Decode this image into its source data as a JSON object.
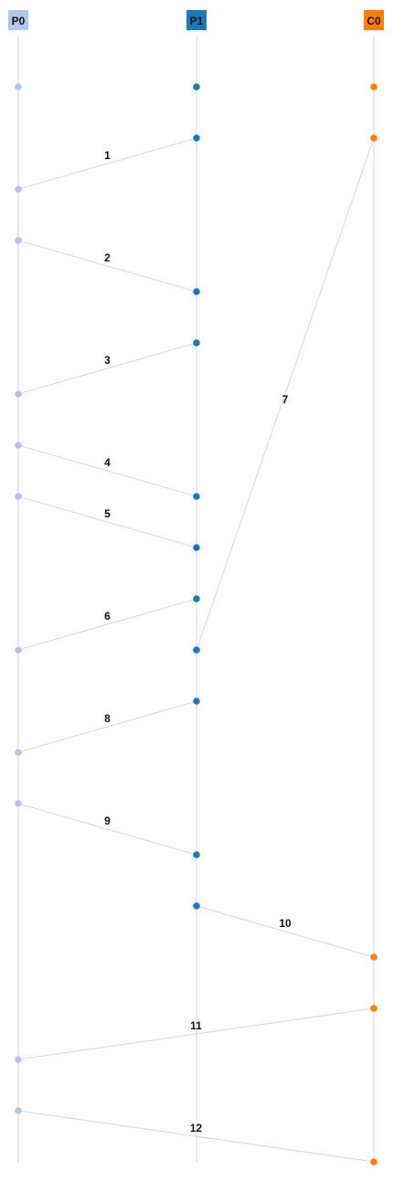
{
  "participants": [
    {
      "id": "P0",
      "label": "P0",
      "color": "#aec7e8"
    },
    {
      "id": "P1",
      "label": "P1",
      "color": "#1f77b4"
    },
    {
      "id": "C0",
      "label": "C0",
      "color": "#ff7f0e"
    }
  ],
  "messages": [
    {
      "label": "1",
      "from": "P1",
      "to": "P0"
    },
    {
      "label": "2",
      "from": "P0",
      "to": "P1"
    },
    {
      "label": "3",
      "from": "P1",
      "to": "P0"
    },
    {
      "label": "4",
      "from": "P0",
      "to": "P1"
    },
    {
      "label": "5",
      "from": "P0",
      "to": "P1"
    },
    {
      "label": "6",
      "from": "P1",
      "to": "P0"
    },
    {
      "label": "7",
      "from": "C0",
      "to": "P1"
    },
    {
      "label": "8",
      "from": "P1",
      "to": "P0"
    },
    {
      "label": "9",
      "from": "P0",
      "to": "P1"
    },
    {
      "label": "10",
      "from": "P1",
      "to": "C0"
    },
    {
      "label": "11",
      "from": "C0",
      "to": "P0"
    },
    {
      "label": "12",
      "from": "P0",
      "to": "C0"
    }
  ]
}
